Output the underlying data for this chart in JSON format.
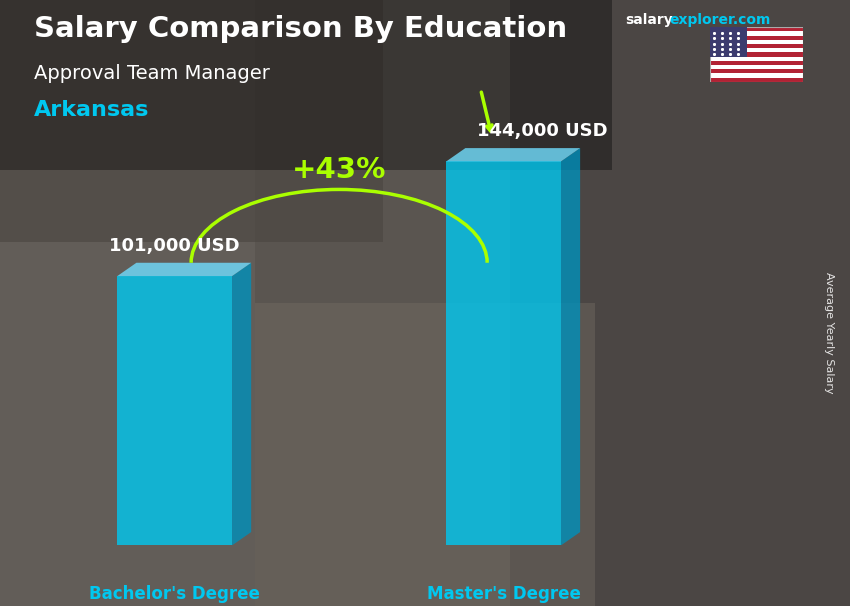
{
  "title_main": "Salary Comparison By Education",
  "subtitle": "Approval Team Manager",
  "location": "Arkansas",
  "categories": [
    "Bachelor's Degree",
    "Master's Degree"
  ],
  "values": [
    101000,
    144000
  ],
  "value_labels": [
    "101,000 USD",
    "144,000 USD"
  ],
  "pct_change": "+43%",
  "bar_color_face": "#00C8F0",
  "bar_color_top": "#70DEFF",
  "bar_color_right": "#0090BB",
  "text_color_white": "#FFFFFF",
  "text_color_cyan": "#00C8F0",
  "text_color_green": "#AAFF00",
  "ylabel": "Average Yearly Salary",
  "bg_colors": [
    "#5a5a6a",
    "#3a3a4a",
    "#6a6a5a",
    "#7a7060",
    "#606070"
  ],
  "website_salary": "salary",
  "website_rest": "explorer.com"
}
